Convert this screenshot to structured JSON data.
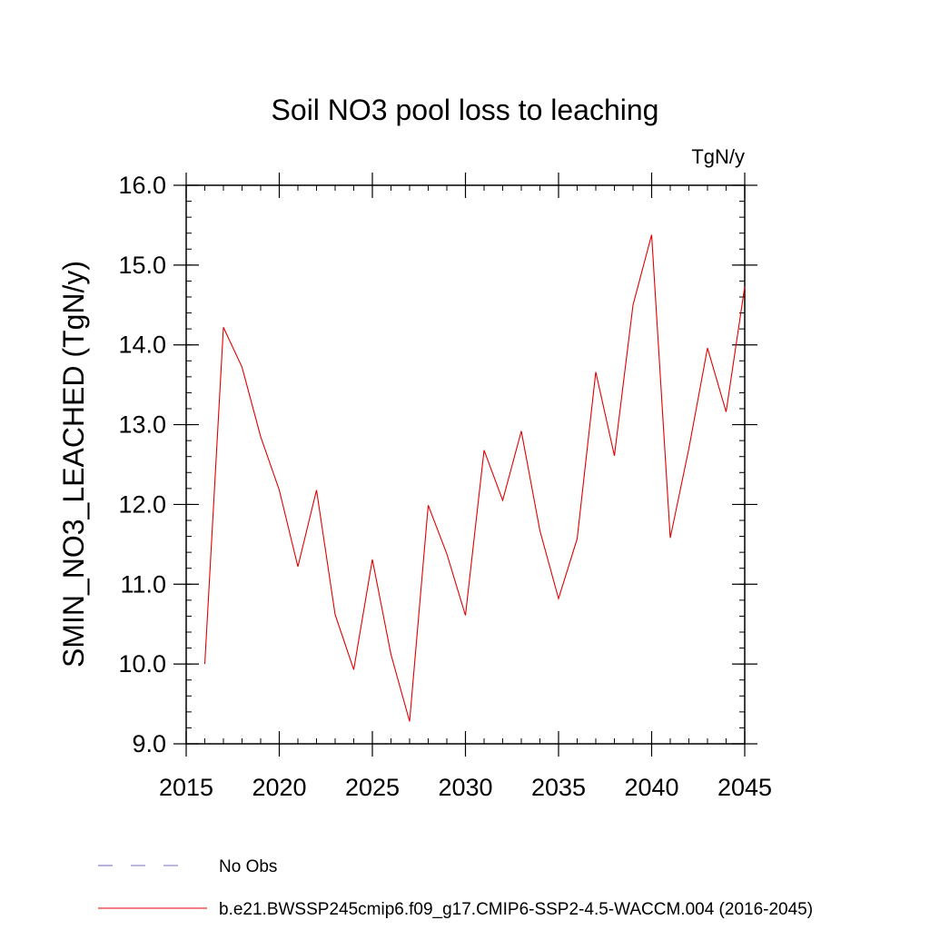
{
  "chart_data": {
    "type": "line",
    "title": "Soil NO3 pool loss to leaching",
    "units_label": "TgN/y",
    "ylabel": "SMIN_NO3_LEACHED  (TgN/y)",
    "xlabel": "",
    "xlim": [
      2015,
      2045
    ],
    "ylim": [
      9.0,
      16.0
    ],
    "x_ticks": [
      2015,
      2020,
      2025,
      2030,
      2035,
      2040,
      2045
    ],
    "x_tick_labels": [
      "2015",
      "2020",
      "2025",
      "2030",
      "2035",
      "2040",
      "2045"
    ],
    "y_ticks": [
      9.0,
      10.0,
      11.0,
      12.0,
      13.0,
      14.0,
      15.0,
      16.0
    ],
    "y_tick_labels": [
      "9.0",
      "10.0",
      "11.0",
      "12.0",
      "13.0",
      "14.0",
      "15.0",
      "16.0"
    ],
    "grid": false,
    "legend_position": "bottom",
    "series": [
      {
        "name": "b.e21.BWSSP245cmip6.f09_g17.CMIP6-SSP2-4.5-WACCM.004 (2016-2045)",
        "color": "#e00000",
        "dash": "solid",
        "x": [
          2016,
          2017,
          2018,
          2019,
          2020,
          2021,
          2022,
          2023,
          2024,
          2025,
          2026,
          2027,
          2028,
          2029,
          2030,
          2031,
          2032,
          2033,
          2034,
          2035,
          2036,
          2037,
          2038,
          2039,
          2040,
          2041,
          2042,
          2043,
          2044,
          2045
        ],
        "y": [
          10.0,
          14.22,
          13.72,
          12.85,
          12.18,
          11.22,
          12.18,
          10.62,
          9.93,
          11.31,
          10.12,
          9.28,
          11.99,
          11.38,
          10.61,
          12.68,
          12.05,
          12.92,
          11.67,
          10.82,
          11.57,
          13.66,
          12.61,
          14.5,
          15.38,
          11.58,
          12.7,
          13.96,
          13.16,
          14.73
        ]
      }
    ],
    "legend": [
      {
        "label": "No Obs",
        "color": "#7b6fb8",
        "dash": "dashed"
      },
      {
        "label": "b.e21.BWSSP245cmip6.f09_g17.CMIP6-SSP2-4.5-WACCM.004 (2016-2045)",
        "color": "#e00000",
        "dash": "solid"
      }
    ]
  }
}
